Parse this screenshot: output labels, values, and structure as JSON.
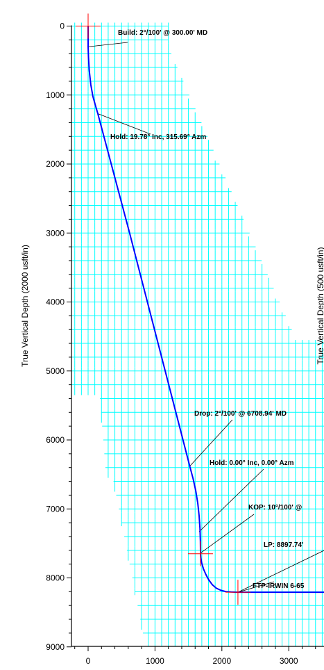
{
  "colors": {
    "grid": "#00ffff",
    "path": "#0000ff",
    "marker": "#ff0000",
    "axis": "#000000",
    "background": "#ffffff"
  },
  "chart_data": {
    "type": "line",
    "xlim": [
      -250,
      3600
    ],
    "ylim": [
      9000,
      -350
    ],
    "xticks": [
      0,
      1000,
      2000,
      3000
    ],
    "yticks": [
      0,
      1000,
      2000,
      3000,
      4000,
      5000,
      6000,
      7000,
      8000,
      9000
    ],
    "ylabel": "True Vertical Depth (2000 usft/in)",
    "ylabel_right": "True Vertical Depth (500 usft/in)",
    "grid": true,
    "series": [
      {
        "x": [
          0,
          0,
          5,
          18,
          40,
          72,
          112,
          145,
          620,
          1520,
          1570,
          1610,
          1640,
          1660,
          1672,
          1678,
          1680,
          1680,
          1685,
          1700,
          1725,
          1760,
          1805,
          1858,
          1918,
          1985,
          2060,
          2140,
          2230,
          2600,
          3600
        ],
        "y": [
          0,
          300,
          450,
          650,
          850,
          1020,
          1160,
          1270,
          3000,
          6380,
          6560,
          6740,
          6920,
          7100,
          7280,
          7460,
          7620,
          7650,
          7710,
          7790,
          7870,
          7950,
          8030,
          8100,
          8150,
          8180,
          8198,
          8205,
          8208,
          8208,
          8208
        ]
      }
    ],
    "markers": [
      {
        "x": 0,
        "y": 0
      },
      {
        "x": 1680,
        "y": 7650
      },
      {
        "x": 2240,
        "y": 8208
      }
    ],
    "annotations": [
      {
        "label": "Build: 2°/100' @ 300.00' MD",
        "x": 0,
        "y": 300
      },
      {
        "label": "Hold: 19.78° Inc, 315.69° Azm",
        "x": 145,
        "y": 1270
      },
      {
        "label": "Drop: 2°/100' @ 6708.94' MD",
        "x": 1520,
        "y": 6380
      },
      {
        "label": "Hold: 0.00° Inc, 0.00° Azm",
        "x": 1660,
        "y": 7330
      },
      {
        "label": "KOP: 10°/100' @",
        "x": 1680,
        "y": 7640
      },
      {
        "label": "LP:  8897.74'",
        "x": 2240,
        "y": 8208
      },
      {
        "label": "FTP-IRWIN 6-65",
        "x": 2240,
        "y": 8208
      }
    ]
  }
}
